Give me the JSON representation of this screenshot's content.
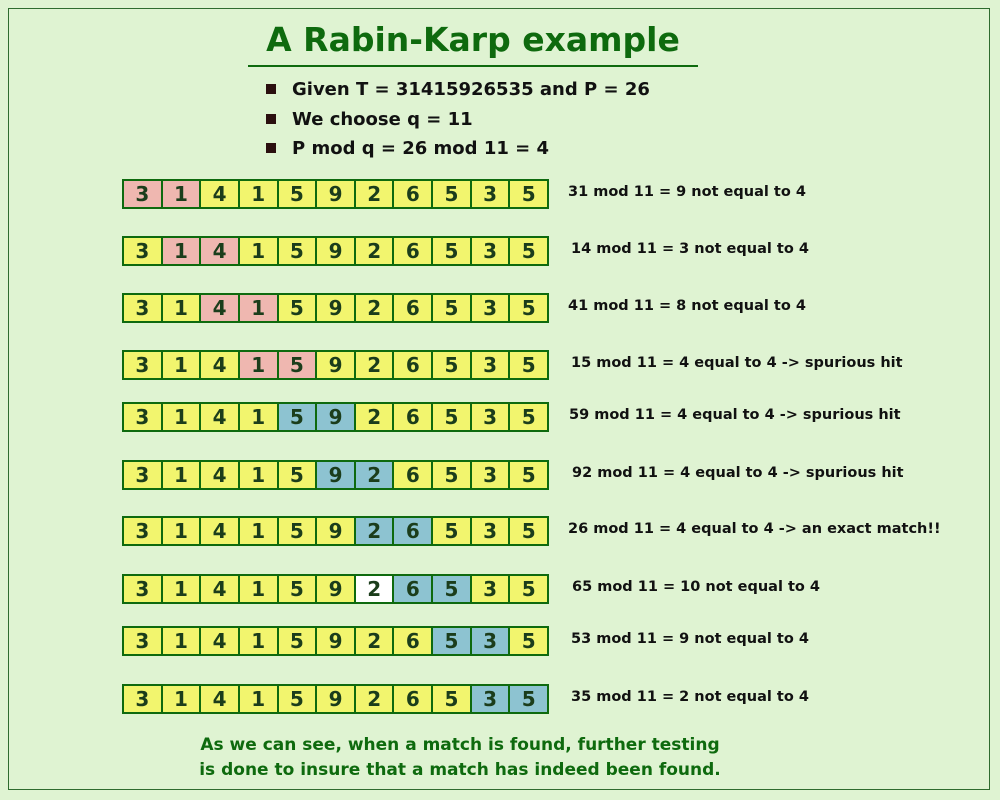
{
  "title": "A Rabin-Karp example",
  "bullets": [
    "Given T = 31415926535 and P = 26",
    "We choose q = 11",
    "P mod q = 26 mod 11 = 4"
  ],
  "text_digits": [
    "3",
    "1",
    "4",
    "1",
    "5",
    "9",
    "2",
    "6",
    "5",
    "3",
    "5"
  ],
  "colors": {
    "default_cell": "#f2f56e",
    "mismatch_window": "#efb7b0",
    "hit_window": "#8dc3d1",
    "plain_cell": "#ffffff",
    "title": "#0e6a0e",
    "border": "#0e6a0e",
    "background": "#dff3d2"
  },
  "rows": [
    {
      "highlight": {
        "0": "pink",
        "1": "pink"
      },
      "caption": "31 mod 11 = 9 not equal to 4"
    },
    {
      "highlight": {
        "1": "pink",
        "2": "pink"
      },
      "caption": "14 mod 11 = 3 not equal to 4"
    },
    {
      "highlight": {
        "2": "pink",
        "3": "pink"
      },
      "caption": "41 mod 11 = 8 not equal to 4"
    },
    {
      "highlight": {
        "3": "pink",
        "4": "pink"
      },
      "caption": "15 mod 11 = 4 equal to 4 -> spurious hit"
    },
    {
      "highlight": {
        "4": "blue",
        "5": "blue"
      },
      "caption": "59 mod 11 = 4 equal to 4 -> spurious hit"
    },
    {
      "highlight": {
        "5": "blue",
        "6": "blue"
      },
      "caption": "92 mod 11 = 4 equal to 4 -> spurious hit"
    },
    {
      "highlight": {
        "6": "blue",
        "7": "blue"
      },
      "caption": "26 mod 11 = 4 equal to 4 -> an exact match!!"
    },
    {
      "highlight": {
        "6": "white",
        "7": "blue",
        "8": "blue"
      },
      "caption": "65 mod 11 = 10 not equal to 4"
    },
    {
      "highlight": {
        "8": "blue",
        "9": "blue"
      },
      "caption": "53 mod 11 = 9 not equal to 4"
    },
    {
      "highlight": {
        "9": "blue",
        "10": "blue"
      },
      "caption": "35 mod 11 = 2 not equal to 4"
    }
  ],
  "footer": [
    "As we can see, when a match is found, further testing",
    "is done to insure that a match has indeed been found."
  ]
}
